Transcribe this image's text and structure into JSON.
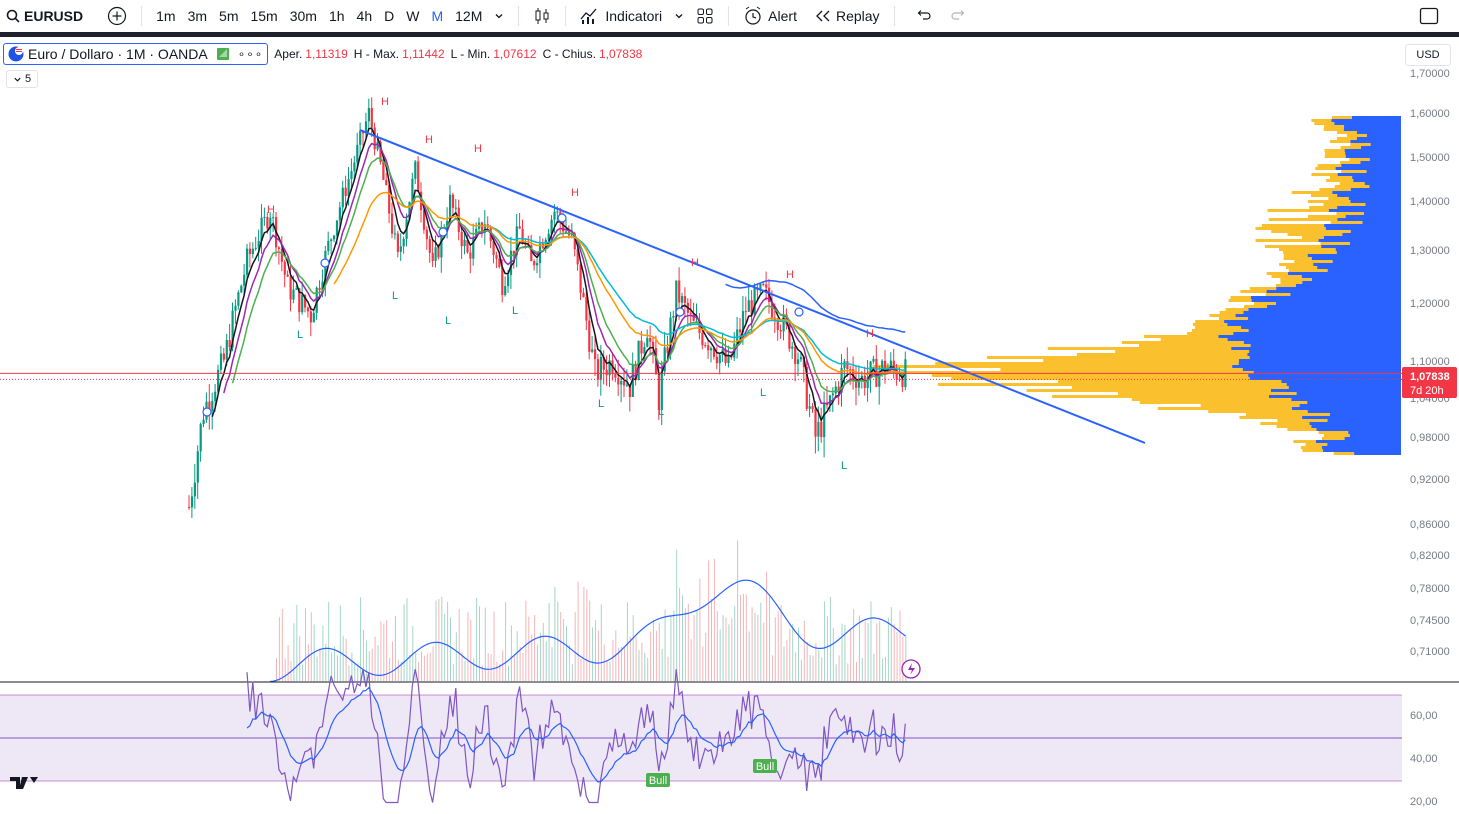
{
  "toolbar": {
    "symbol": "EURUSD",
    "timeframes": [
      "1m",
      "3m",
      "5m",
      "15m",
      "30m",
      "1h",
      "4h",
      "D",
      "W",
      "M",
      "12M"
    ],
    "active_timeframe": "M",
    "indicators_label": "Indicatori",
    "alert_label": "Alert",
    "replay_label": "Replay"
  },
  "legend": {
    "title": "Euro / Dollaro · 1M · OANDA",
    "open_label": "Aper.",
    "open": "1,11319",
    "high_label": "H - Max.",
    "high": "1,11442",
    "low_label": "L - Min.",
    "low": "1,07612",
    "close_label": "C - Chius.",
    "close": "1,07838",
    "collapsed_count": "5"
  },
  "price_scale": {
    "currency": "USD",
    "labels": [
      "1,70000",
      "1,60000",
      "1,50000",
      "1,40000",
      "1,30000",
      "1,20000",
      "1,10000",
      "1,04000",
      "0,98000",
      "0,92000",
      "0,86000",
      "0,82000",
      "0,78000",
      "0,74500",
      "0,71000"
    ],
    "current_price": "1,07838",
    "countdown": "7d 20h"
  },
  "rsi_scale": {
    "labels": [
      "60,00",
      "40,00",
      "20,00"
    ]
  },
  "markers": {
    "high": "H",
    "low": "L",
    "bull": "Bull"
  },
  "colors": {
    "up": "#089981",
    "down": "#f23645",
    "trend": "#2962ff",
    "vp_up": "#fbc02d",
    "vp_down": "#2962ff",
    "rsi_line": "#7e57c2",
    "rsi_bg": "#ede7f6",
    "price_line": "#f23645",
    "ema_green": "#4caf50",
    "ema_orange": "#ff9800",
    "ema_teal": "#00bcd4",
    "ema_purple": "#9c27b0"
  }
}
